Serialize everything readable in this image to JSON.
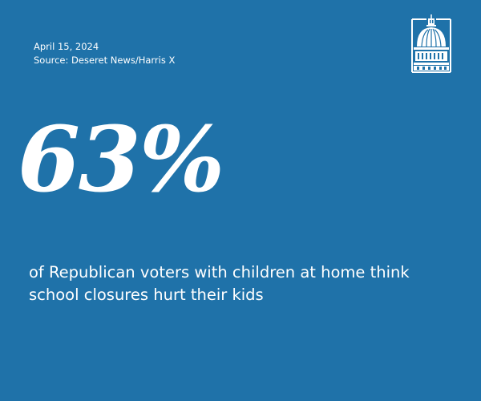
{
  "meta": {
    "date": "April 15, 2024",
    "source": "Source: Deseret News/Harris X"
  },
  "logo": {
    "icon": "capitol-dome-icon"
  },
  "stat": {
    "value": "63%",
    "caption": "of Republican voters with children at home think school closures hurt their kids"
  },
  "colors": {
    "background": "#1f72a9",
    "text": "#ffffff"
  }
}
